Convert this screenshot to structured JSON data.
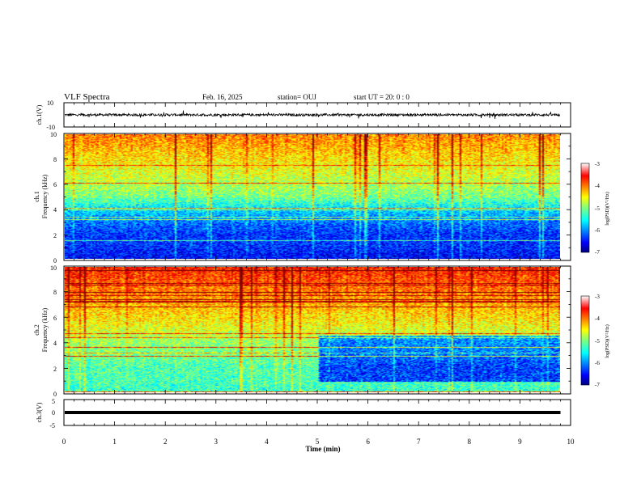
{
  "header": {
    "title": "VLF Spectra",
    "date": "Feb. 16, 2025",
    "station": "station= OUJ",
    "start": "start  UT =   20: 0  : 0"
  },
  "panels": {
    "ch1_wave": {
      "ylabel": "ch.1(V)",
      "ticks": [
        "10",
        "-10"
      ]
    },
    "ch1_spec": {
      "ylabel_top": "ch.1",
      "ylabel": "Frequency  (kHz)",
      "ticks": [
        "0",
        "2",
        "4",
        "6",
        "8",
        "10"
      ]
    },
    "ch2_spec": {
      "ylabel_top": "ch.2",
      "ylabel": "Frequency  (kHz)",
      "ticks": [
        "0",
        "2",
        "4",
        "6",
        "8",
        "10"
      ]
    },
    "ch3_wave": {
      "ylabel": "ch.3(V)",
      "ticks": [
        "5",
        "0",
        "-5"
      ]
    }
  },
  "colorbar": {
    "label": "log(PSD)(V²/Hz)",
    "ticks": [
      "-3",
      "-4",
      "-5",
      "-6",
      "-7"
    ]
  },
  "x_axis": {
    "label": "Time  (min)",
    "ticks": [
      "0",
      "1",
      "2",
      "3",
      "4",
      "5",
      "6",
      "7",
      "8",
      "9",
      "10"
    ]
  },
  "chart_data": [
    {
      "type": "line",
      "name": "ch1_waveform",
      "xlim": [
        0,
        10
      ],
      "ylim": [
        -10,
        10
      ],
      "data_end_min": 9.8,
      "baseline": 0,
      "noise_amplitude": 1.0
    },
    {
      "type": "heatmap",
      "name": "ch1_spectrogram",
      "x_range_min": [
        0,
        9.8
      ],
      "y_range_khz": [
        0,
        10
      ],
      "color_range_logpsd": [
        -7,
        -3
      ],
      "level_by_freq_khz": [
        [
          0,
          -6.5
        ],
        [
          1,
          -6.3
        ],
        [
          2,
          -6.3
        ],
        [
          3,
          -6.0
        ],
        [
          4,
          -5.6
        ],
        [
          5,
          -5.0
        ],
        [
          6,
          -4.8
        ],
        [
          7,
          -4.6
        ],
        [
          8,
          -4.4
        ],
        [
          9,
          -4.2
        ],
        [
          10,
          -4.0
        ]
      ]
    },
    {
      "type": "heatmap",
      "name": "ch2_spectrogram",
      "x_range_min": [
        0,
        9.8
      ],
      "y_range_khz": [
        0,
        10
      ],
      "color_range_logpsd": [
        -7,
        -3
      ],
      "level_by_freq_khz": [
        [
          0,
          -5.3
        ],
        [
          1,
          -5.2
        ],
        [
          2,
          -5.2
        ],
        [
          3,
          -5.0
        ],
        [
          4,
          -4.9
        ],
        [
          5,
          -4.6
        ],
        [
          6,
          -4.4
        ],
        [
          7,
          -4.2
        ],
        [
          8,
          -4.0
        ],
        [
          9,
          -3.8
        ],
        [
          10,
          -3.6
        ]
      ]
    },
    {
      "type": "line",
      "name": "ch3_waveform",
      "xlim": [
        0,
        10
      ],
      "ylim": [
        -5,
        5
      ],
      "data_end_min": 9.8,
      "value": 0
    }
  ]
}
